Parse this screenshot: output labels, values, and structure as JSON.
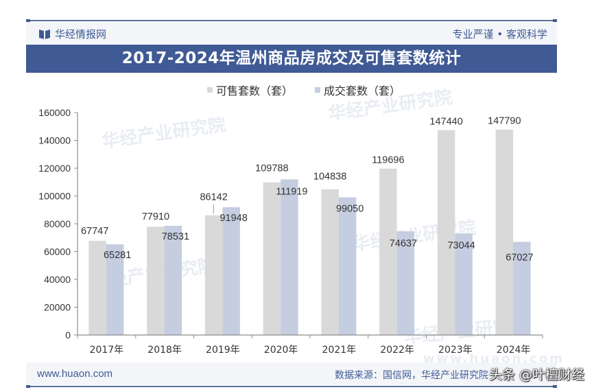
{
  "header": {
    "brand": "华经情报网",
    "motto": "专业严谨 • 客观科学",
    "title": "2017-2024年温州商品房成交及可售套数统计"
  },
  "legend": [
    {
      "label": "可售套数（套）",
      "color": "#d9d9d9"
    },
    {
      "label": "成交套数（套）",
      "color": "#c5cde0"
    }
  ],
  "watermarks": [
    "华经产业研究院",
    "www.huaon.com"
  ],
  "footer": {
    "site": "www.huaon.com",
    "source": "数据来源：国信网，华经产业研究院",
    "overlay_credit": "头条 @叶檀财经"
  },
  "colors": {
    "brand": "#3f5a94",
    "band_bg": "#f3f5f9",
    "series_available": "#d9d9d9",
    "series_sold": "#c5cde0"
  },
  "chart_data": {
    "type": "bar",
    "title": "2017-2024年温州商品房成交及可售套数统计",
    "categories": [
      "2017年",
      "2018年",
      "2019年",
      "2020年",
      "2021年",
      "2022年",
      "2023年",
      "2024年"
    ],
    "series": [
      {
        "name": "可售套数（套）",
        "values": [
          67747,
          77910,
          86142,
          109788,
          104838,
          119696,
          147440,
          147790
        ]
      },
      {
        "name": "成交套数（套）",
        "values": [
          65281,
          78531,
          91948,
          111919,
          99050,
          74637,
          73044,
          67027
        ]
      }
    ],
    "xlabel": "",
    "ylabel": "",
    "ylim": [
      0,
      160000
    ],
    "yticks": [
      0,
      20000,
      40000,
      60000,
      80000,
      100000,
      120000,
      140000,
      160000
    ],
    "grid": false,
    "legend_position": "top"
  }
}
